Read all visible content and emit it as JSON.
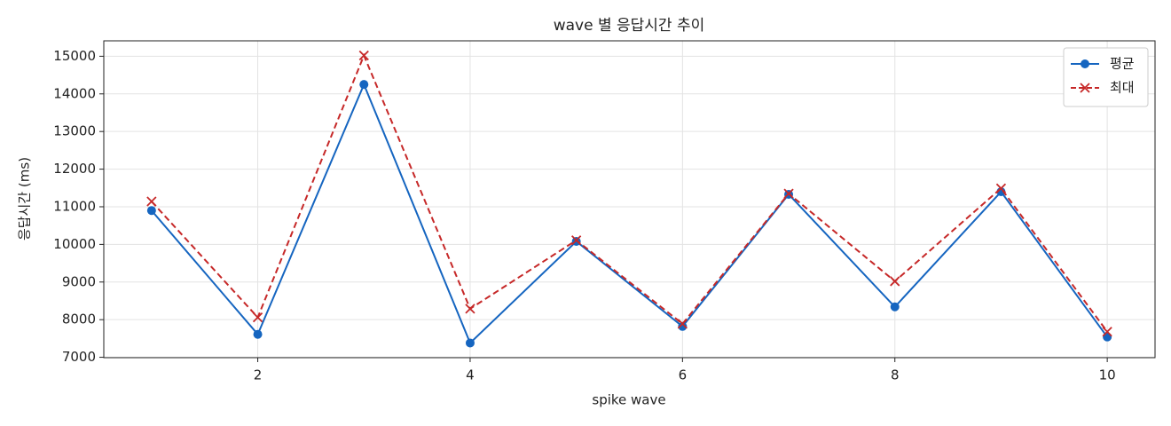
{
  "chart_data": {
    "type": "line",
    "title": "wave 별 응답시간 추이",
    "x_label": "spike wave",
    "y_label": "응답시간 (ms)",
    "x": [
      1,
      2,
      3,
      4,
      5,
      6,
      7,
      8,
      9,
      10
    ],
    "series": [
      {
        "name": "평균",
        "color": "#1565c0",
        "marker": "circle",
        "dash": false,
        "values": [
          10900,
          7610,
          14250,
          7380,
          10080,
          7820,
          11330,
          8340,
          11400,
          7540
        ]
      },
      {
        "name": "최대",
        "color": "#c62828",
        "marker": "x",
        "dash": true,
        "values": [
          11140,
          8060,
          15020,
          8290,
          10110,
          7890,
          11350,
          9020,
          11490,
          7680
        ]
      }
    ],
    "xlim": [
      0.55,
      10.45
    ],
    "xticks": [
      2,
      4,
      6,
      8,
      10
    ],
    "ylim": [
      6990,
      15410
    ],
    "yticks": [
      7000,
      8000,
      9000,
      10000,
      11000,
      12000,
      13000,
      14000,
      15000
    ],
    "grid": true,
    "legend": "upper right"
  }
}
